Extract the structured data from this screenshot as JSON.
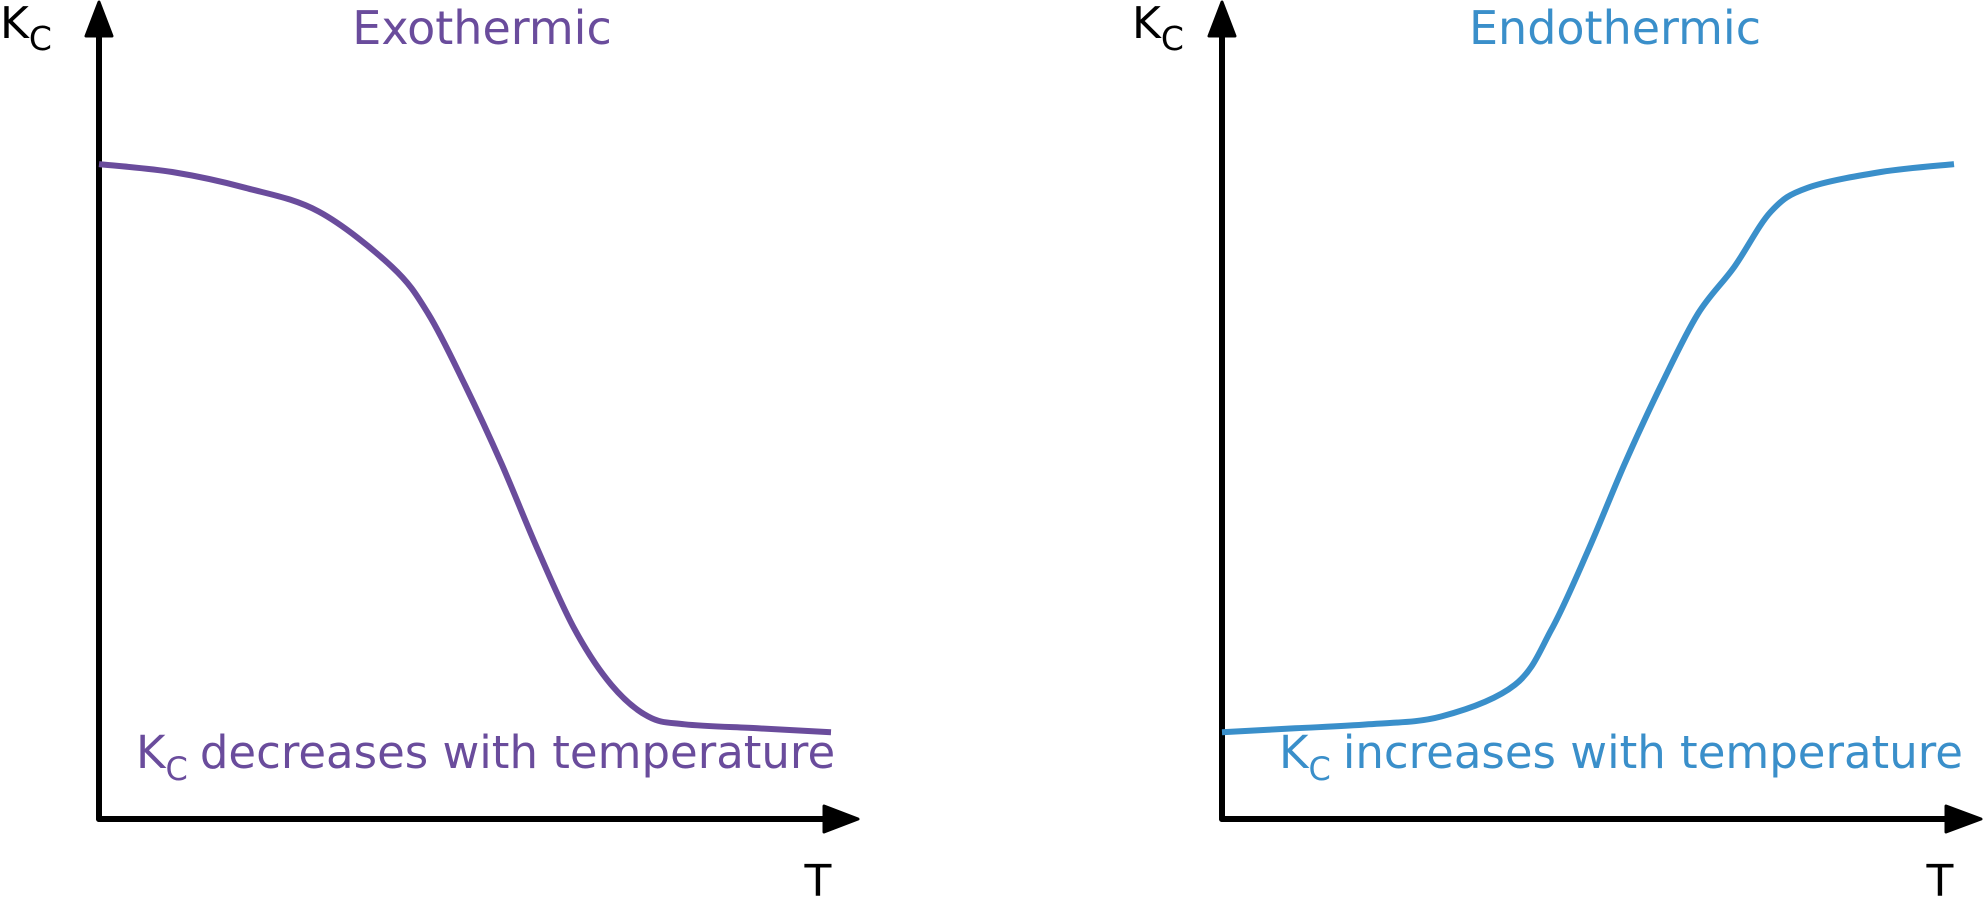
{
  "chart_data": [
    {
      "type": "line",
      "title": "Exothermic",
      "xlabel": "T",
      "ylabel": {
        "main": "K",
        "sub": "C"
      },
      "caption": {
        "main": "K",
        "sub": "C",
        "rest": "decreases with temperature"
      },
      "color": "#6a4c9c",
      "grid": false,
      "xlim": [
        0,
        1
      ],
      "ylim": [
        0,
        1
      ],
      "series": [
        {
          "values_x": [
            0,
            0.1,
            0.2,
            0.3,
            0.4,
            0.45,
            0.5,
            0.55,
            0.6,
            0.65,
            0.7,
            0.75,
            0.8,
            0.9,
            1.0
          ],
          "values_y": [
            0.83,
            0.82,
            0.8,
            0.77,
            0.7,
            0.64,
            0.55,
            0.45,
            0.34,
            0.24,
            0.17,
            0.13,
            0.12,
            0.115,
            0.11
          ]
        }
      ]
    },
    {
      "type": "line",
      "title": "Endothermic",
      "xlabel": "T",
      "ylabel": {
        "main": "K",
        "sub": "C"
      },
      "caption": {
        "main": "K",
        "sub": "C",
        "rest": "increases with temperature"
      },
      "color": "#3a8fca",
      "grid": false,
      "xlim": [
        0,
        1
      ],
      "ylim": [
        0,
        1
      ],
      "series": [
        {
          "values_x": [
            0,
            0.1,
            0.2,
            0.3,
            0.4,
            0.45,
            0.5,
            0.55,
            0.6,
            0.65,
            0.7,
            0.75,
            0.8,
            0.9,
            1.0
          ],
          "values_y": [
            0.11,
            0.115,
            0.12,
            0.13,
            0.17,
            0.24,
            0.34,
            0.45,
            0.55,
            0.64,
            0.7,
            0.77,
            0.8,
            0.82,
            0.83
          ]
        }
      ]
    }
  ]
}
